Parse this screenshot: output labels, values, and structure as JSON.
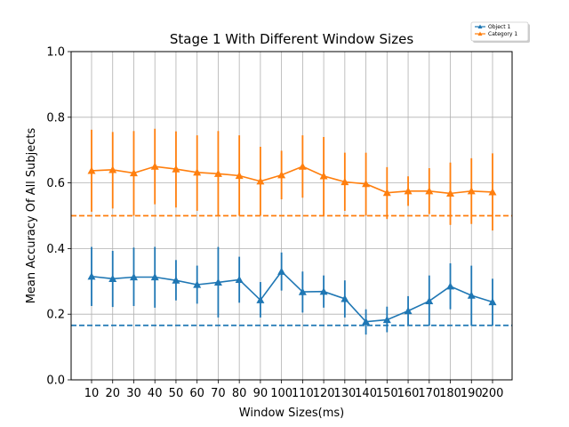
{
  "chart_data": {
    "type": "line",
    "title": "Stage 1 With Different Window Sizes",
    "xlabel": "Window Sizes(ms)",
    "ylabel": "Mean Accuracy Of All Subjects",
    "ylim": [
      0.0,
      1.0
    ],
    "yticks": [
      "0.0",
      "0.2",
      "0.4",
      "0.6",
      "0.8",
      "1.0"
    ],
    "x": [
      10,
      20,
      30,
      40,
      50,
      60,
      70,
      80,
      90,
      100,
      110,
      120,
      130,
      140,
      150,
      160,
      170,
      180,
      190,
      200
    ],
    "grid": "x",
    "legend_position": "top-right",
    "series": [
      {
        "name": "Object 1",
        "color": "#1f77b4",
        "marker": "triangle",
        "values": [
          0.315,
          0.308,
          0.313,
          0.313,
          0.303,
          0.29,
          0.297,
          0.305,
          0.243,
          0.33,
          0.268,
          0.269,
          0.247,
          0.177,
          0.183,
          0.21,
          0.24,
          0.285,
          0.257,
          0.237
        ],
        "err_low": [
          0.225,
          0.222,
          0.225,
          0.22,
          0.242,
          0.232,
          0.19,
          0.235,
          0.19,
          0.272,
          0.205,
          0.22,
          0.19,
          0.138,
          0.145,
          0.168,
          0.165,
          0.215,
          0.165,
          0.165
        ],
        "err_high": [
          0.405,
          0.393,
          0.403,
          0.405,
          0.365,
          0.348,
          0.405,
          0.375,
          0.298,
          0.388,
          0.33,
          0.318,
          0.303,
          0.215,
          0.223,
          0.255,
          0.318,
          0.355,
          0.348,
          0.308
        ]
      },
      {
        "name": "Category 1",
        "color": "#ff7f0e",
        "marker": "triangle",
        "values": [
          0.637,
          0.64,
          0.63,
          0.65,
          0.642,
          0.632,
          0.628,
          0.622,
          0.605,
          0.624,
          0.65,
          0.621,
          0.603,
          0.597,
          0.57,
          0.575,
          0.575,
          0.568,
          0.575,
          0.572
        ],
        "err_low": [
          0.512,
          0.522,
          0.5,
          0.535,
          0.525,
          0.515,
          0.5,
          0.5,
          0.5,
          0.55,
          0.555,
          0.5,
          0.515,
          0.5,
          0.49,
          0.53,
          0.505,
          0.472,
          0.475,
          0.455
        ],
        "err_high": [
          0.762,
          0.755,
          0.758,
          0.765,
          0.757,
          0.745,
          0.758,
          0.745,
          0.71,
          0.698,
          0.745,
          0.74,
          0.692,
          0.692,
          0.648,
          0.62,
          0.645,
          0.662,
          0.675,
          0.69
        ]
      }
    ],
    "baselines": [
      {
        "value": 0.166,
        "color": "#1f77b4",
        "style": "dashed"
      },
      {
        "value": 0.5,
        "color": "#ff7f0e",
        "style": "dashed"
      }
    ]
  }
}
